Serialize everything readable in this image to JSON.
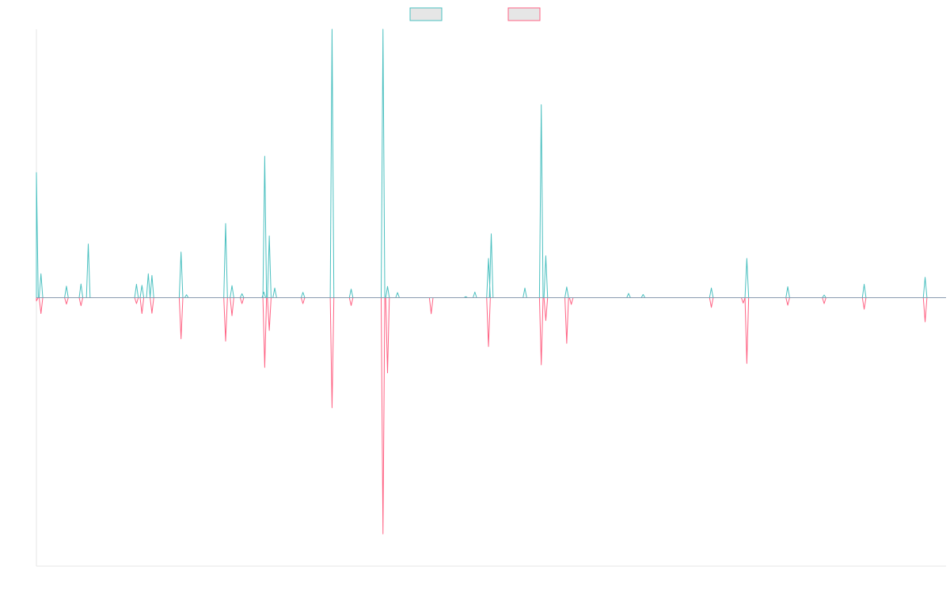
{
  "chart_data": {
    "type": "line",
    "title": "",
    "xlabel": "",
    "ylabel": "",
    "grid": false,
    "legend_position": "top-center",
    "colors": {
      "series_up": "#4bc0c0",
      "series_down": "#ff6384",
      "baseline": "#8a9bb0",
      "axis": "#e6e6e6",
      "legend_fill": "#e6e6e6"
    },
    "x_range": [
      0,
      1000
    ],
    "y_range": [
      -1,
      1
    ],
    "series": [
      {
        "legend_label": "",
        "polarity": "positive",
        "peaks": [
          [
            0,
            0.466
          ],
          [
            5,
            0.089
          ],
          [
            33,
            0.043
          ],
          [
            49,
            0.051
          ],
          [
            57,
            0.2
          ],
          [
            110,
            0.05
          ],
          [
            116,
            0.046
          ],
          [
            123,
            0.089
          ],
          [
            127,
            0.083
          ],
          [
            159,
            0.17
          ],
          [
            165,
            0.011
          ],
          [
            208,
            0.276
          ],
          [
            215,
            0.045
          ],
          [
            226,
            0.015
          ],
          [
            250,
            0.021
          ],
          [
            251,
            0.527
          ],
          [
            256,
            0.23
          ],
          [
            262,
            0.036
          ],
          [
            293,
            0.02
          ],
          [
            325,
            1.0
          ],
          [
            346,
            0.032
          ],
          [
            381,
            1.0
          ],
          [
            386,
            0.042
          ],
          [
            397,
            0.019
          ],
          [
            472,
            0.004
          ],
          [
            482,
            0.021
          ],
          [
            497,
            0.146
          ],
          [
            500,
            0.238
          ],
          [
            537,
            0.036
          ],
          [
            555,
            0.719
          ],
          [
            560,
            0.156
          ],
          [
            583,
            0.04
          ],
          [
            651,
            0.016
          ],
          [
            667,
            0.012
          ],
          [
            742,
            0.036
          ],
          [
            781,
            0.146
          ],
          [
            826,
            0.041
          ],
          [
            866,
            0.01
          ],
          [
            910,
            0.05
          ],
          [
            977,
            0.076
          ]
        ]
      },
      {
        "legend_label": "",
        "polarity": "negative",
        "peaks": [
          [
            0,
            0.012
          ],
          [
            5,
            0.059
          ],
          [
            33,
            0.024
          ],
          [
            49,
            0.03
          ],
          [
            110,
            0.022
          ],
          [
            116,
            0.059
          ],
          [
            127,
            0.058
          ],
          [
            159,
            0.153
          ],
          [
            208,
            0.162
          ],
          [
            215,
            0.067
          ],
          [
            226,
            0.022
          ],
          [
            251,
            0.26
          ],
          [
            256,
            0.122
          ],
          [
            293,
            0.022
          ],
          [
            325,
            0.41
          ],
          [
            346,
            0.029
          ],
          [
            381,
            0.88
          ],
          [
            386,
            0.28
          ],
          [
            434,
            0.06
          ],
          [
            497,
            0.182
          ],
          [
            555,
            0.25
          ],
          [
            560,
            0.085
          ],
          [
            583,
            0.17
          ],
          [
            588,
            0.025
          ],
          [
            742,
            0.036
          ],
          [
            777,
            0.02
          ],
          [
            781,
            0.245
          ],
          [
            826,
            0.028
          ],
          [
            866,
            0.022
          ],
          [
            910,
            0.043
          ],
          [
            977,
            0.09
          ]
        ]
      }
    ]
  }
}
